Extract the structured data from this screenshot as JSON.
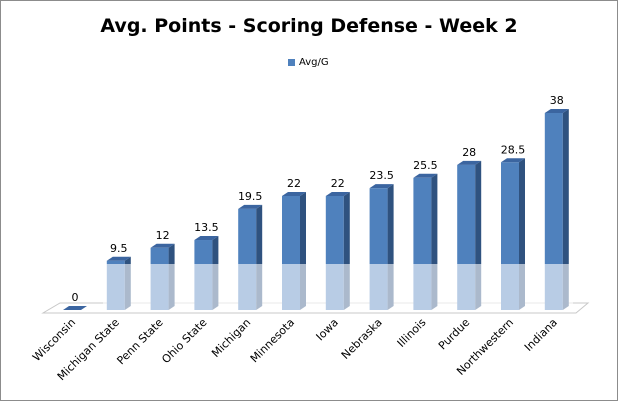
{
  "chart_data": {
    "type": "bar",
    "style": "3d-column",
    "title": "Avg. Points - Scoring Defense - Week 2",
    "categories": [
      "Wisconsin",
      "Michigan State",
      "Penn State",
      "Ohio State",
      "Michigan",
      "Minnesota",
      "Iowa",
      "Nebraska",
      "Illinois",
      "Purdue",
      "Northwestern",
      "Indiana"
    ],
    "series": [
      {
        "name": "Avg/G",
        "values": [
          0,
          9.5,
          12,
          13.5,
          19.5,
          22,
          22,
          23.5,
          25.5,
          28,
          28.5,
          38
        ]
      }
    ],
    "data_labels": [
      "0",
      "9.5",
      "12",
      "13.5",
      "19.5",
      "22",
      "22",
      "23.5",
      "25.5",
      "28",
      "28.5",
      "38"
    ],
    "xlabel": "",
    "ylabel": "",
    "ylim": [
      0,
      38
    ],
    "grid": false,
    "legend_position": "top",
    "colors": {
      "bar_front": "#4f81bd",
      "bar_side": "#2f527f",
      "bar_top": "#3b65a0"
    }
  }
}
